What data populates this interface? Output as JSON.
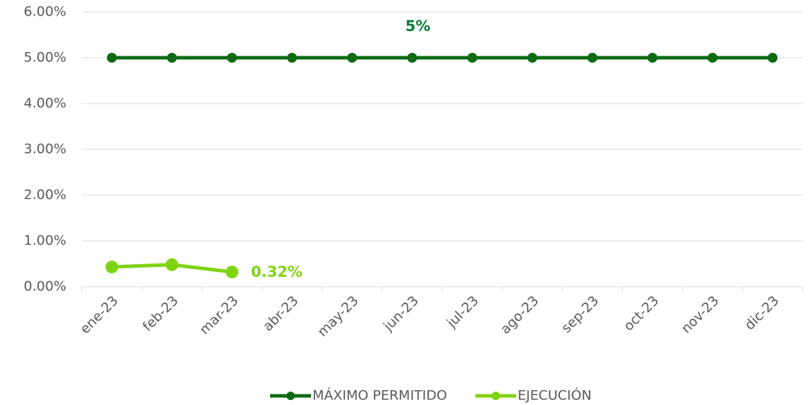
{
  "chart_data": {
    "type": "line",
    "categories": [
      "ene-23",
      "feb-23",
      "mar-23",
      "abr-23",
      "may-23",
      "jun-23",
      "jul-23",
      "ago-23",
      "sep-23",
      "oct-23",
      "nov-23",
      "dic-23"
    ],
    "series": [
      {
        "name": "MÁXIMO PERMITIDO",
        "color": "#0e6b14",
        "values": [
          5,
          5,
          5,
          5,
          5,
          5,
          5,
          5,
          5,
          5,
          5,
          5
        ],
        "value_labels": [
          null,
          null,
          null,
          null,
          null,
          "5%",
          null,
          null,
          null,
          null,
          null,
          null
        ],
        "label_color": "#0b7a35"
      },
      {
        "name": "EJECUCIÓN",
        "color": "#80d313",
        "values": [
          0.43,
          0.48,
          0.32,
          null,
          null,
          null,
          null,
          null,
          null,
          null,
          null,
          null
        ],
        "value_labels": [
          null,
          null,
          "0.32%",
          null,
          null,
          null,
          null,
          null,
          null,
          null,
          null,
          null
        ],
        "label_color": "#80d313"
      }
    ],
    "ylim": [
      0,
      6
    ],
    "yticks": [
      {
        "value": 0,
        "label": "0.00%"
      },
      {
        "value": 1,
        "label": "1.00%"
      },
      {
        "value": 2,
        "label": "2.00%"
      },
      {
        "value": 3,
        "label": "3.00%"
      },
      {
        "value": 4,
        "label": "4.00%"
      },
      {
        "value": 5,
        "label": "5.00%"
      },
      {
        "value": 6,
        "label": "6.00%"
      }
    ],
    "grid": true,
    "legend": "bottom"
  }
}
